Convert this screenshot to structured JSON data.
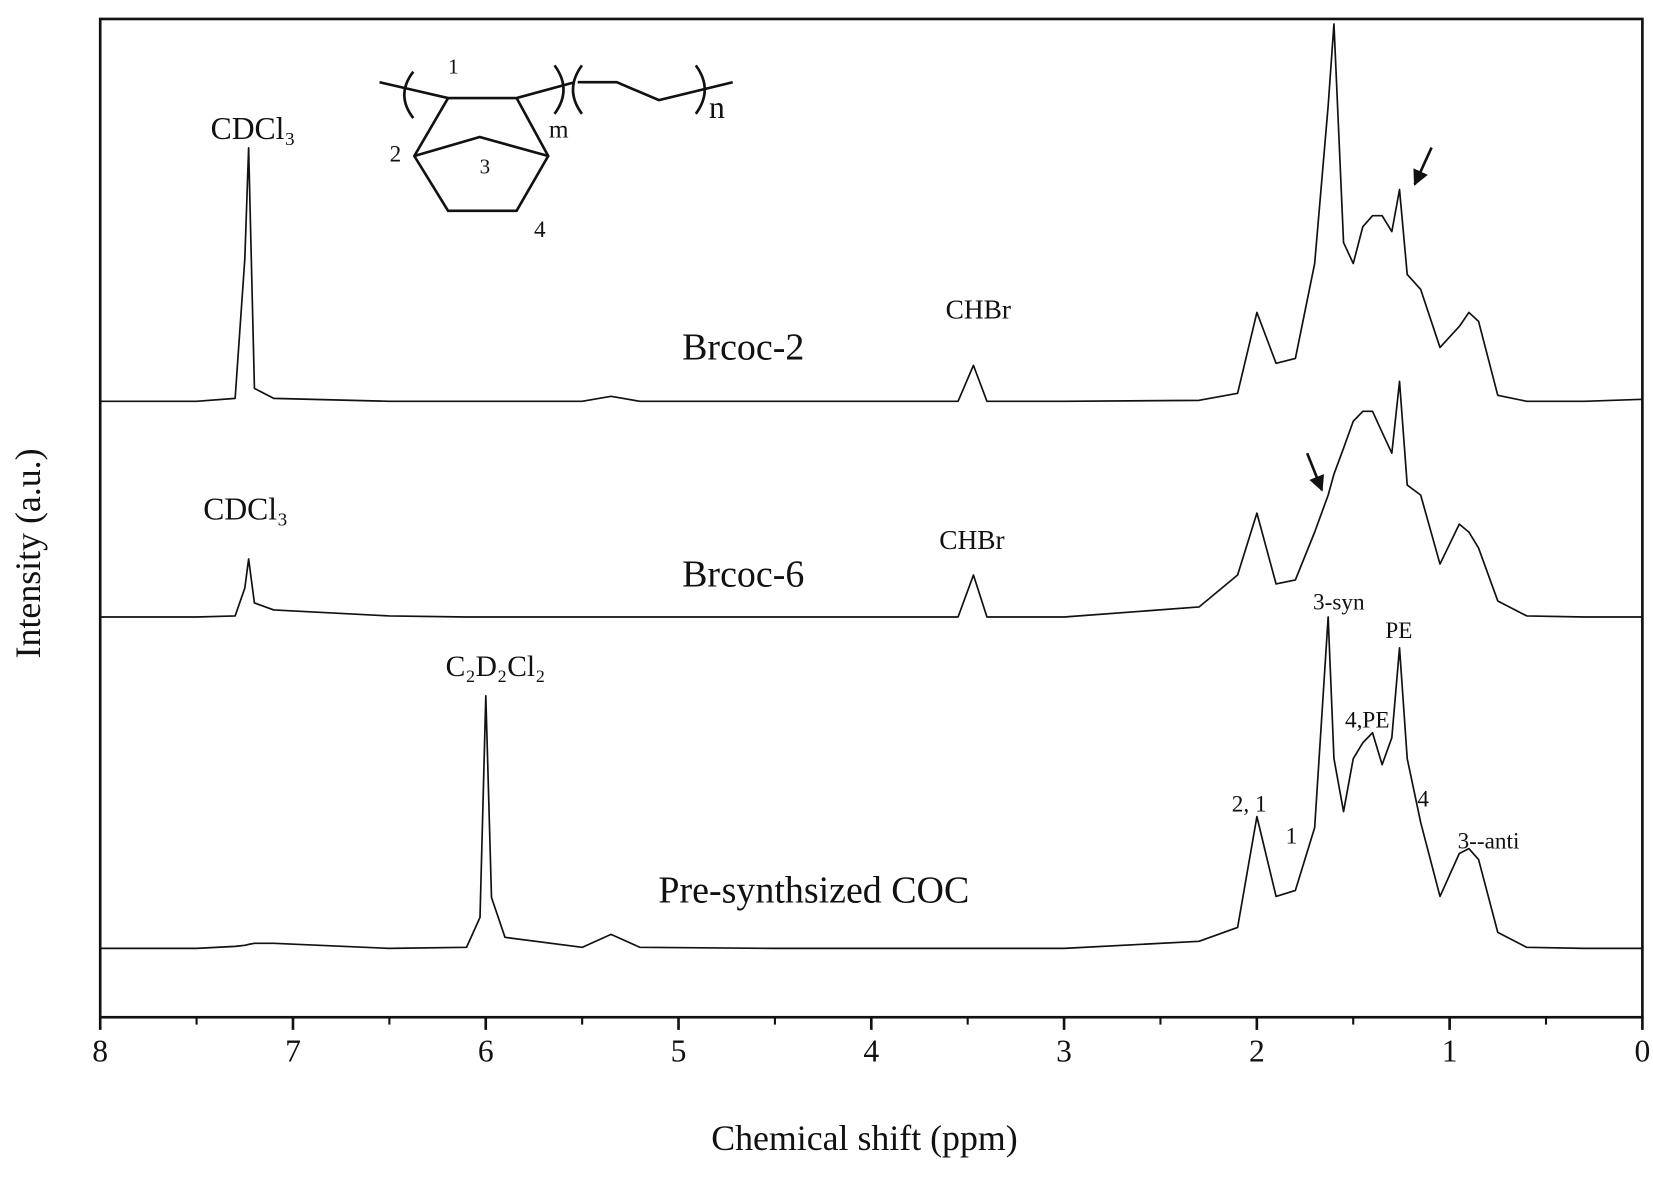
{
  "chart_data": {
    "type": "line",
    "x_label": "Chemical shift (ppm)",
    "y_label": "Intensity (a.u.)",
    "xlim": [
      8,
      0
    ],
    "xticks": [
      8,
      7,
      6,
      5,
      4,
      3,
      2,
      1,
      0
    ],
    "xminorticks": [
      7.5,
      6.5,
      5.5,
      4.5,
      3.5,
      2.5,
      1.5,
      0.5
    ],
    "ylim": [
      0,
      100
    ],
    "color": "#111111",
    "x": [
      8,
      7.5,
      7.3,
      7.25,
      7.23,
      7.2,
      7.1,
      6.5,
      6.1,
      6.03,
      6.0,
      5.97,
      5.9,
      5.5,
      5.35,
      5.2,
      4.5,
      3.55,
      3.47,
      3.4,
      3.0,
      2.3,
      2.1,
      2.0,
      1.9,
      1.8,
      1.7,
      1.63,
      1.6,
      1.55,
      1.5,
      1.45,
      1.4,
      1.35,
      1.3,
      1.26,
      1.22,
      1.15,
      1.05,
      0.95,
      0.9,
      0.85,
      0.75,
      0.6,
      0.3,
      0
    ],
    "series": [
      {
        "name": "Brcoc-2",
        "color": "#111111",
        "values": [
          61.7,
          61.7,
          62,
          76,
          87.1,
          63,
          62,
          61.7,
          61.7,
          61.7,
          61.7,
          61.7,
          61.7,
          61.7,
          62.2,
          61.7,
          61.7,
          61.7,
          65.3,
          61.7,
          61.7,
          61.8,
          62.5,
          70.6,
          65.5,
          66,
          75.5,
          91.3,
          99.5,
          77.6,
          75.5,
          79.2,
          80.3,
          80.3,
          78.7,
          82.9,
          74.4,
          72.9,
          67.1,
          69.2,
          70.6,
          69.7,
          62.3,
          61.7,
          61.7,
          61.9
        ]
      },
      {
        "name": "Brcoc-6",
        "color": "#111111",
        "values": [
          40.1,
          40.1,
          40.2,
          43,
          45.9,
          41.5,
          40.8,
          40.2,
          40.1,
          40.1,
          40.1,
          40.1,
          40.1,
          40.1,
          40.1,
          40.1,
          40.1,
          40.1,
          44.3,
          40.1,
          40.1,
          41.1,
          44.3,
          50.5,
          43.4,
          43.8,
          48.6,
          52.3,
          54.4,
          57,
          59.7,
          60.7,
          60.7,
          58.6,
          56.5,
          63.7,
          53.3,
          52.3,
          45.4,
          49.4,
          48.6,
          47,
          41.7,
          40.2,
          40.1,
          40.1
        ]
      },
      {
        "name": "Pre-synthsized COC",
        "color": "#111111",
        "values": [
          6.9,
          6.9,
          7.1,
          7.2,
          7.3,
          7.4,
          7.4,
          6.9,
          7.0,
          10,
          32.2,
          12,
          8,
          7.0,
          8.3,
          7.0,
          6.9,
          6.9,
          6.9,
          6.9,
          6.9,
          7.6,
          9.0,
          20.1,
          12.1,
          12.7,
          19,
          40.1,
          25.9,
          20.6,
          25.9,
          27.5,
          28.5,
          25.3,
          28,
          37,
          25.9,
          19.5,
          12.1,
          16.4,
          16.9,
          15.8,
          8.5,
          7,
          6.9,
          6.9
        ]
      }
    ],
    "annotations": [
      "CDCl₃",
      "CHBr",
      "CDCl₃",
      "CHBr",
      "C₂D₂Cl₂",
      "3-syn",
      "PE",
      "4,PE",
      "2,  1",
      "1",
      "4",
      "3--anti"
    ],
    "structure_labels": [
      "1",
      "2",
      "3",
      "4",
      "m",
      "n"
    ]
  }
}
